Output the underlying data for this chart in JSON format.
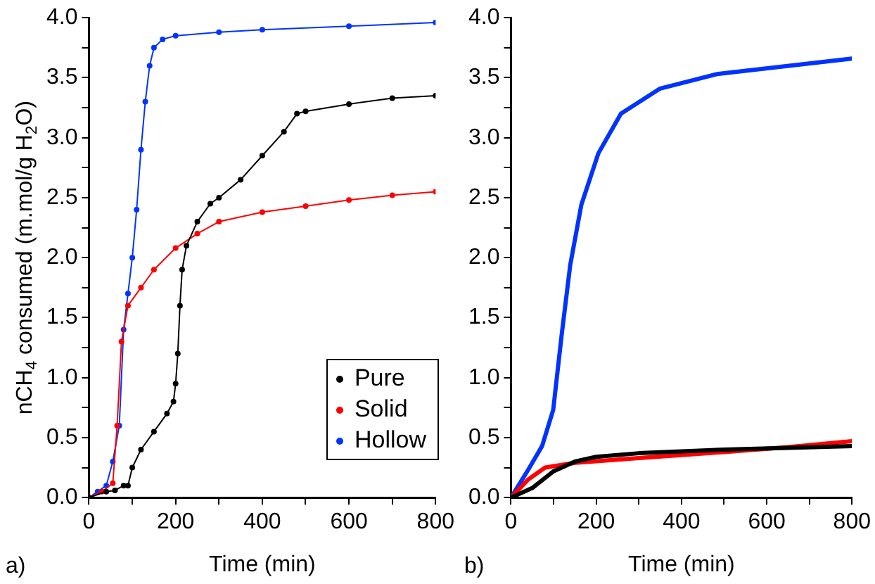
{
  "chart_data": [
    {
      "type": "line",
      "xlabel": "Time (min)",
      "ylabel": "nCH$_{4}$ consumed (m.mol/g H$_{2}$O)",
      "annotations": [
        "a)"
      ],
      "marker": "circle",
      "legend": "bottom right",
      "grid": false,
      "xlim": [
        0,
        800
      ],
      "xticks": [
        0,
        {
          "value": 100,
          "label": null
        },
        200,
        {
          "value": 300,
          "label": null
        },
        400,
        {
          "value": 500,
          "label": null
        },
        600,
        {
          "value": 700,
          "label": null
        },
        800
      ],
      "ylim": [
        0,
        4
      ],
      "yticks": [
        {
          "value": 0,
          "label": "0.0"
        },
        {
          "value": 0.25,
          "label": null
        },
        0.5,
        {
          "value": 0.75,
          "label": null
        },
        {
          "value": 1,
          "label": "1.0"
        },
        {
          "value": 1.25,
          "label": null
        },
        1.5,
        {
          "value": 1.75,
          "label": null
        },
        {
          "value": 2,
          "label": "2.0"
        },
        {
          "value": 2.25,
          "label": null
        },
        2.5,
        {
          "value": 2.75,
          "label": null
        },
        {
          "value": 3,
          "label": "3.0"
        },
        {
          "value": 3.25,
          "label": null
        },
        3.5,
        {
          "value": 3.75,
          "label": null
        },
        {
          "value": 4,
          "label": "4.0"
        }
      ],
      "series": [
        {
          "name": "Pure",
          "color": "#000000",
          "x": [
            0,
            40,
            60,
            80,
            90,
            100,
            120,
            150,
            180,
            195,
            200,
            205,
            210,
            215,
            225,
            250,
            280,
            300,
            350,
            400,
            450,
            480,
            500,
            600,
            700,
            800
          ],
          "values": [
            0,
            0.05,
            0.06,
            0.1,
            0.1,
            0.25,
            0.4,
            0.55,
            0.7,
            0.8,
            0.95,
            1.2,
            1.6,
            1.9,
            2.1,
            2.3,
            2.45,
            2.5,
            2.65,
            2.85,
            3.05,
            3.2,
            3.22,
            3.28,
            3.33,
            3.35
          ]
        },
        {
          "name": "Solid",
          "color": "#ff0000",
          "x": [
            0,
            30,
            55,
            65,
            75,
            90,
            120,
            150,
            200,
            250,
            300,
            400,
            500,
            600,
            700,
            800
          ],
          "values": [
            0,
            0.05,
            0.12,
            0.6,
            1.3,
            1.6,
            1.75,
            1.9,
            2.08,
            2.2,
            2.3,
            2.38,
            2.43,
            2.48,
            2.52,
            2.55
          ]
        },
        {
          "name": "Hollow",
          "color": "#0033ff",
          "x": [
            0,
            20,
            40,
            55,
            70,
            80,
            90,
            100,
            110,
            120,
            130,
            140,
            150,
            170,
            200,
            300,
            400,
            600,
            800
          ],
          "values": [
            0,
            0.05,
            0.1,
            0.3,
            0.6,
            1.4,
            1.7,
            2,
            2.4,
            2.9,
            3.3,
            3.6,
            3.75,
            3.82,
            3.85,
            3.88,
            3.9,
            3.93,
            3.96
          ]
        }
      ]
    },
    {
      "type": "line",
      "xlabel": "Time (min)",
      "annotations": [
        "b)"
      ],
      "marker": "none",
      "grid": false,
      "xlim": [
        0,
        800
      ],
      "xticks": [
        0,
        {
          "value": 100,
          "label": null
        },
        200,
        {
          "value": 300,
          "label": null
        },
        400,
        {
          "value": 500,
          "label": null
        },
        600,
        {
          "value": 700,
          "label": null
        },
        800
      ],
      "ylim": [
        0,
        4
      ],
      "yticks": [
        {
          "value": 0,
          "label": "0.0"
        },
        {
          "value": 0.25,
          "label": null
        },
        0.5,
        {
          "value": 0.75,
          "label": null
        },
        {
          "value": 1,
          "label": "1.0"
        },
        {
          "value": 1.25,
          "label": null
        },
        1.5,
        {
          "value": 1.75,
          "label": null
        },
        {
          "value": 2,
          "label": "2.0"
        },
        {
          "value": 2.25,
          "label": null
        },
        2.5,
        {
          "value": 2.75,
          "label": null
        },
        {
          "value": 3,
          "label": "3.0"
        },
        {
          "value": 3.25,
          "label": null
        },
        3.5,
        {
          "value": 3.75,
          "label": null
        },
        {
          "value": 4,
          "label": "4.0"
        }
      ],
      "series": [
        {
          "color": "#000000",
          "x": [
            0,
            50,
            100,
            150,
            200,
            300,
            500,
            800
          ],
          "values": [
            0,
            0.08,
            0.22,
            0.3,
            0.34,
            0.37,
            0.4,
            0.43
          ]
        },
        {
          "color": "#ff0000",
          "x": [
            0,
            40,
            80,
            150,
            300,
            500,
            650,
            800
          ],
          "values": [
            0,
            0.15,
            0.25,
            0.29,
            0.33,
            0.38,
            0.42,
            0.47
          ]
        },
        {
          "color": "#0033ff",
          "x": [
            0,
            40,
            73,
            99,
            119,
            139,
            165,
            205,
            258,
            350,
            483,
            800
          ],
          "values": [
            0,
            0.23,
            0.43,
            0.73,
            1.36,
            1.94,
            2.44,
            2.87,
            3.2,
            3.41,
            3.53,
            3.66
          ]
        }
      ]
    }
  ]
}
